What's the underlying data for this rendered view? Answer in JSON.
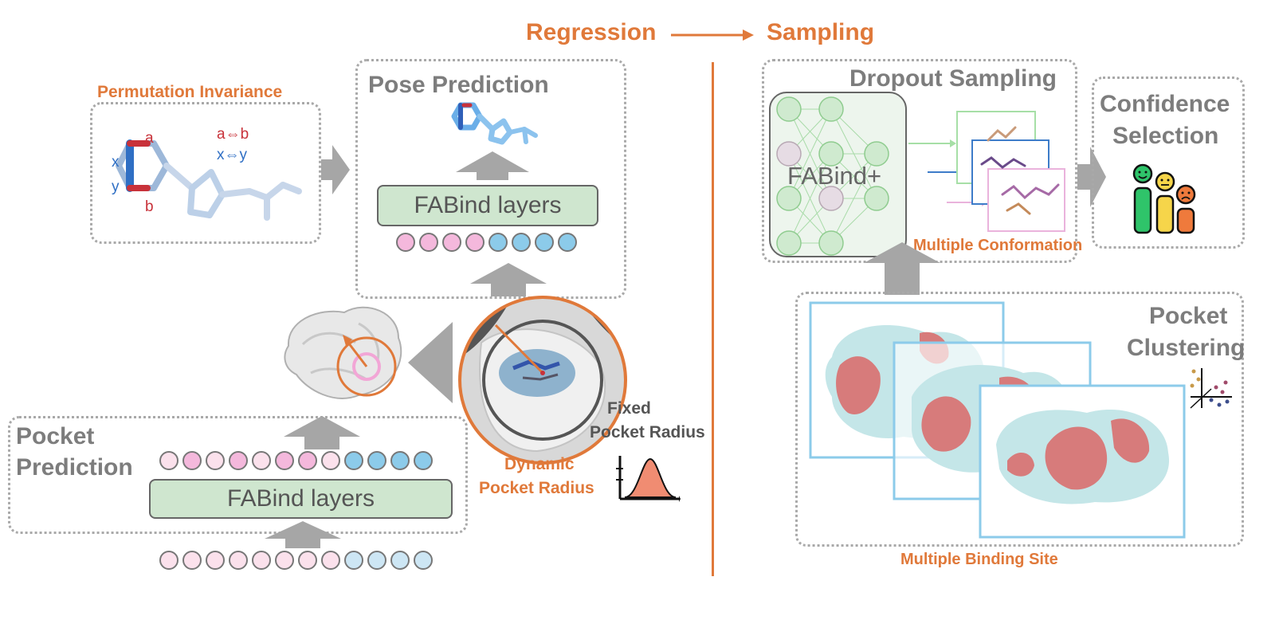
{
  "header": {
    "regression": "Regression",
    "sampling": "Sampling"
  },
  "permutation": {
    "title": "Permutation Invariance",
    "a": "a",
    "b": "b",
    "x": "x",
    "y": "y",
    "swap_ab": "a⇔b",
    "swap_xy": "x⇔y"
  },
  "pose": {
    "title": "Pose Prediction",
    "layers": "FABind layers"
  },
  "pocket": {
    "title_line1": "Pocket",
    "title_line2": "Prediction",
    "layers": "FABind layers"
  },
  "radius": {
    "fixed_line1": "Fixed",
    "fixed_line2": "Pocket Radius",
    "dynamic_line1": "Dynamic",
    "dynamic_line2": "Pocket Radius"
  },
  "dropout": {
    "title": "Dropout Sampling",
    "model": "FABind+",
    "conformation": "Multiple Conformation"
  },
  "confidence": {
    "title_line1": "Confidence",
    "title_line2": "Selection"
  },
  "clustering": {
    "title_line1": "Pocket",
    "title_line2": "Clustering",
    "binding": "Multiple Binding Site"
  },
  "colors": {
    "accent": "#e0793a",
    "layer_green": "#cfe6cf",
    "pink": "#f4b8dc",
    "blue": "#8ccbea",
    "box_border": "#a9a9a9"
  }
}
